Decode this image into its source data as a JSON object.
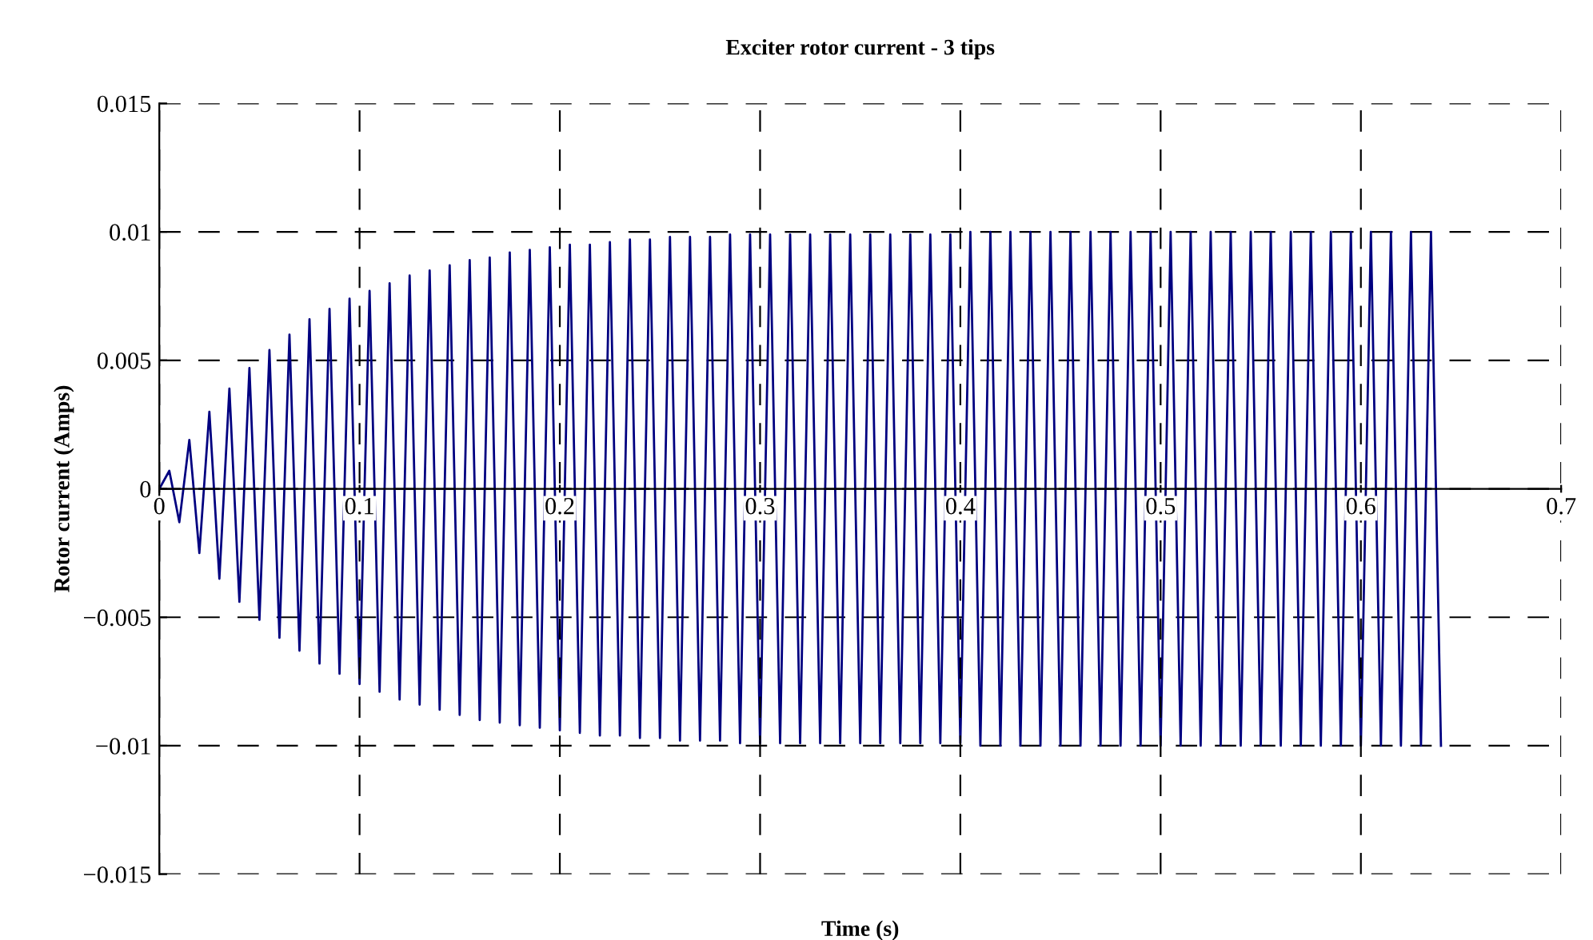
{
  "chart_data": {
    "type": "line",
    "title": "Exciter rotor current - 3 tips",
    "xlabel": "Time (s)",
    "ylabel": "Rotor current (Amps)",
    "x": [
      0,
      0.005,
      0.01,
      0.015,
      0.02,
      0.025,
      0.03,
      0.035,
      0.04,
      0.045,
      0.05,
      0.055,
      0.06,
      0.065,
      0.07,
      0.075,
      0.08,
      0.085,
      0.09,
      0.095,
      0.1,
      0.105,
      0.11,
      0.115,
      0.12,
      0.125,
      0.13,
      0.135,
      0.14,
      0.145,
      0.15,
      0.155,
      0.16,
      0.165,
      0.17,
      0.175,
      0.18,
      0.185,
      0.19,
      0.195,
      0.2,
      0.205,
      0.21,
      0.215,
      0.22,
      0.225,
      0.23,
      0.235,
      0.24,
      0.245,
      0.25,
      0.255,
      0.26,
      0.265,
      0.27,
      0.275,
      0.28,
      0.285,
      0.29,
      0.295,
      0.3,
      0.305,
      0.31,
      0.315,
      0.32,
      0.325,
      0.33,
      0.335,
      0.34,
      0.345,
      0.35,
      0.355,
      0.36,
      0.365,
      0.37,
      0.375,
      0.38,
      0.385,
      0.39,
      0.395,
      0.4,
      0.405,
      0.41,
      0.415,
      0.42,
      0.425,
      0.43,
      0.435,
      0.44,
      0.445,
      0.45,
      0.455,
      0.46,
      0.465,
      0.47,
      0.475,
      0.48,
      0.485,
      0.49,
      0.495,
      0.5,
      0.505,
      0.51,
      0.515,
      0.52,
      0.525,
      0.53,
      0.535,
      0.54,
      0.545,
      0.55,
      0.555,
      0.56,
      0.565,
      0.57,
      0.575,
      0.58,
      0.585,
      0.59,
      0.595,
      0.6,
      0.605,
      0.61,
      0.615,
      0.62,
      0.625,
      0.63,
      0.635,
      0.64
    ],
    "series": [
      {
        "color": "#000080",
        "values": [
          0,
          0.0007,
          -0.0013,
          0.0019,
          -0.0025,
          0.003,
          -0.0035,
          0.0039,
          -0.0044,
          0.0047,
          -0.0051,
          0.0054,
          -0.0058,
          0.006,
          -0.0063,
          0.0066,
          -0.0068,
          0.007,
          -0.0072,
          0.0074,
          -0.0076,
          0.0077,
          -0.0079,
          0.008,
          -0.0082,
          0.0083,
          -0.0084,
          0.0085,
          -0.0086,
          0.0087,
          -0.0088,
          0.0089,
          -0.009,
          0.009,
          -0.0091,
          0.0092,
          -0.0092,
          0.0093,
          -0.0093,
          0.0094,
          -0.0094,
          0.0095,
          -0.0095,
          0.0095,
          -0.0096,
          0.0096,
          -0.0096,
          0.0097,
          -0.0097,
          0.0097,
          -0.0097,
          0.0098,
          -0.0098,
          0.0098,
          -0.0098,
          0.0098,
          -0.0098,
          0.0099,
          -0.0099,
          0.0099,
          -0.0099,
          0.0099,
          -0.0099,
          0.0099,
          -0.0099,
          0.0099,
          -0.0099,
          0.0099,
          -0.0099,
          0.0099,
          -0.0099,
          0.0099,
          -0.0099,
          0.0099,
          -0.0099,
          0.0099,
          -0.0099,
          0.0099,
          -0.0099,
          0.0099,
          -0.0099,
          0.01,
          -0.01,
          0.01,
          -0.01,
          0.01,
          -0.01,
          0.01,
          -0.01,
          0.01,
          -0.01,
          0.01,
          -0.01,
          0.01,
          -0.01,
          0.01,
          -0.01,
          0.01,
          -0.01,
          0.01,
          -0.01,
          0.01,
          -0.01,
          0.01,
          -0.01,
          0.01,
          -0.01,
          0.01,
          -0.01,
          0.01,
          -0.01,
          0.01,
          -0.01,
          0.01,
          -0.01,
          0.01,
          -0.01,
          0.01,
          -0.01,
          0.01,
          -0.01,
          0.01,
          -0.01,
          0.01,
          -0.01,
          0.01,
          -0.01,
          0.01,
          -0.01
        ]
      }
    ],
    "xlim": [
      0,
      0.7
    ],
    "xticks": [
      {
        "value": 0,
        "label": "0"
      },
      {
        "value": 0.1,
        "label": "0.1"
      },
      {
        "value": 0.2,
        "label": "0.2"
      },
      {
        "value": 0.3,
        "label": "0.3"
      },
      {
        "value": 0.4,
        "label": "0.4"
      },
      {
        "value": 0.5,
        "label": "0.5"
      },
      {
        "value": 0.6,
        "label": "0.6"
      },
      {
        "value": 0.7,
        "label": "0.7"
      }
    ],
    "ylim": [
      -0.015,
      0.015
    ],
    "yticks": [
      {
        "value": -0.015,
        "label": "−0.015"
      },
      {
        "value": -0.01,
        "label": "−0.01"
      },
      {
        "value": -0.005,
        "label": "−0.005"
      },
      {
        "value": 0,
        "label": "0"
      },
      {
        "value": 0.005,
        "label": "0.005"
      },
      {
        "value": 0.01,
        "label": "0.01"
      },
      {
        "value": 0.015,
        "label": "0.015"
      }
    ],
    "grid": true,
    "line_style": "solid"
  }
}
